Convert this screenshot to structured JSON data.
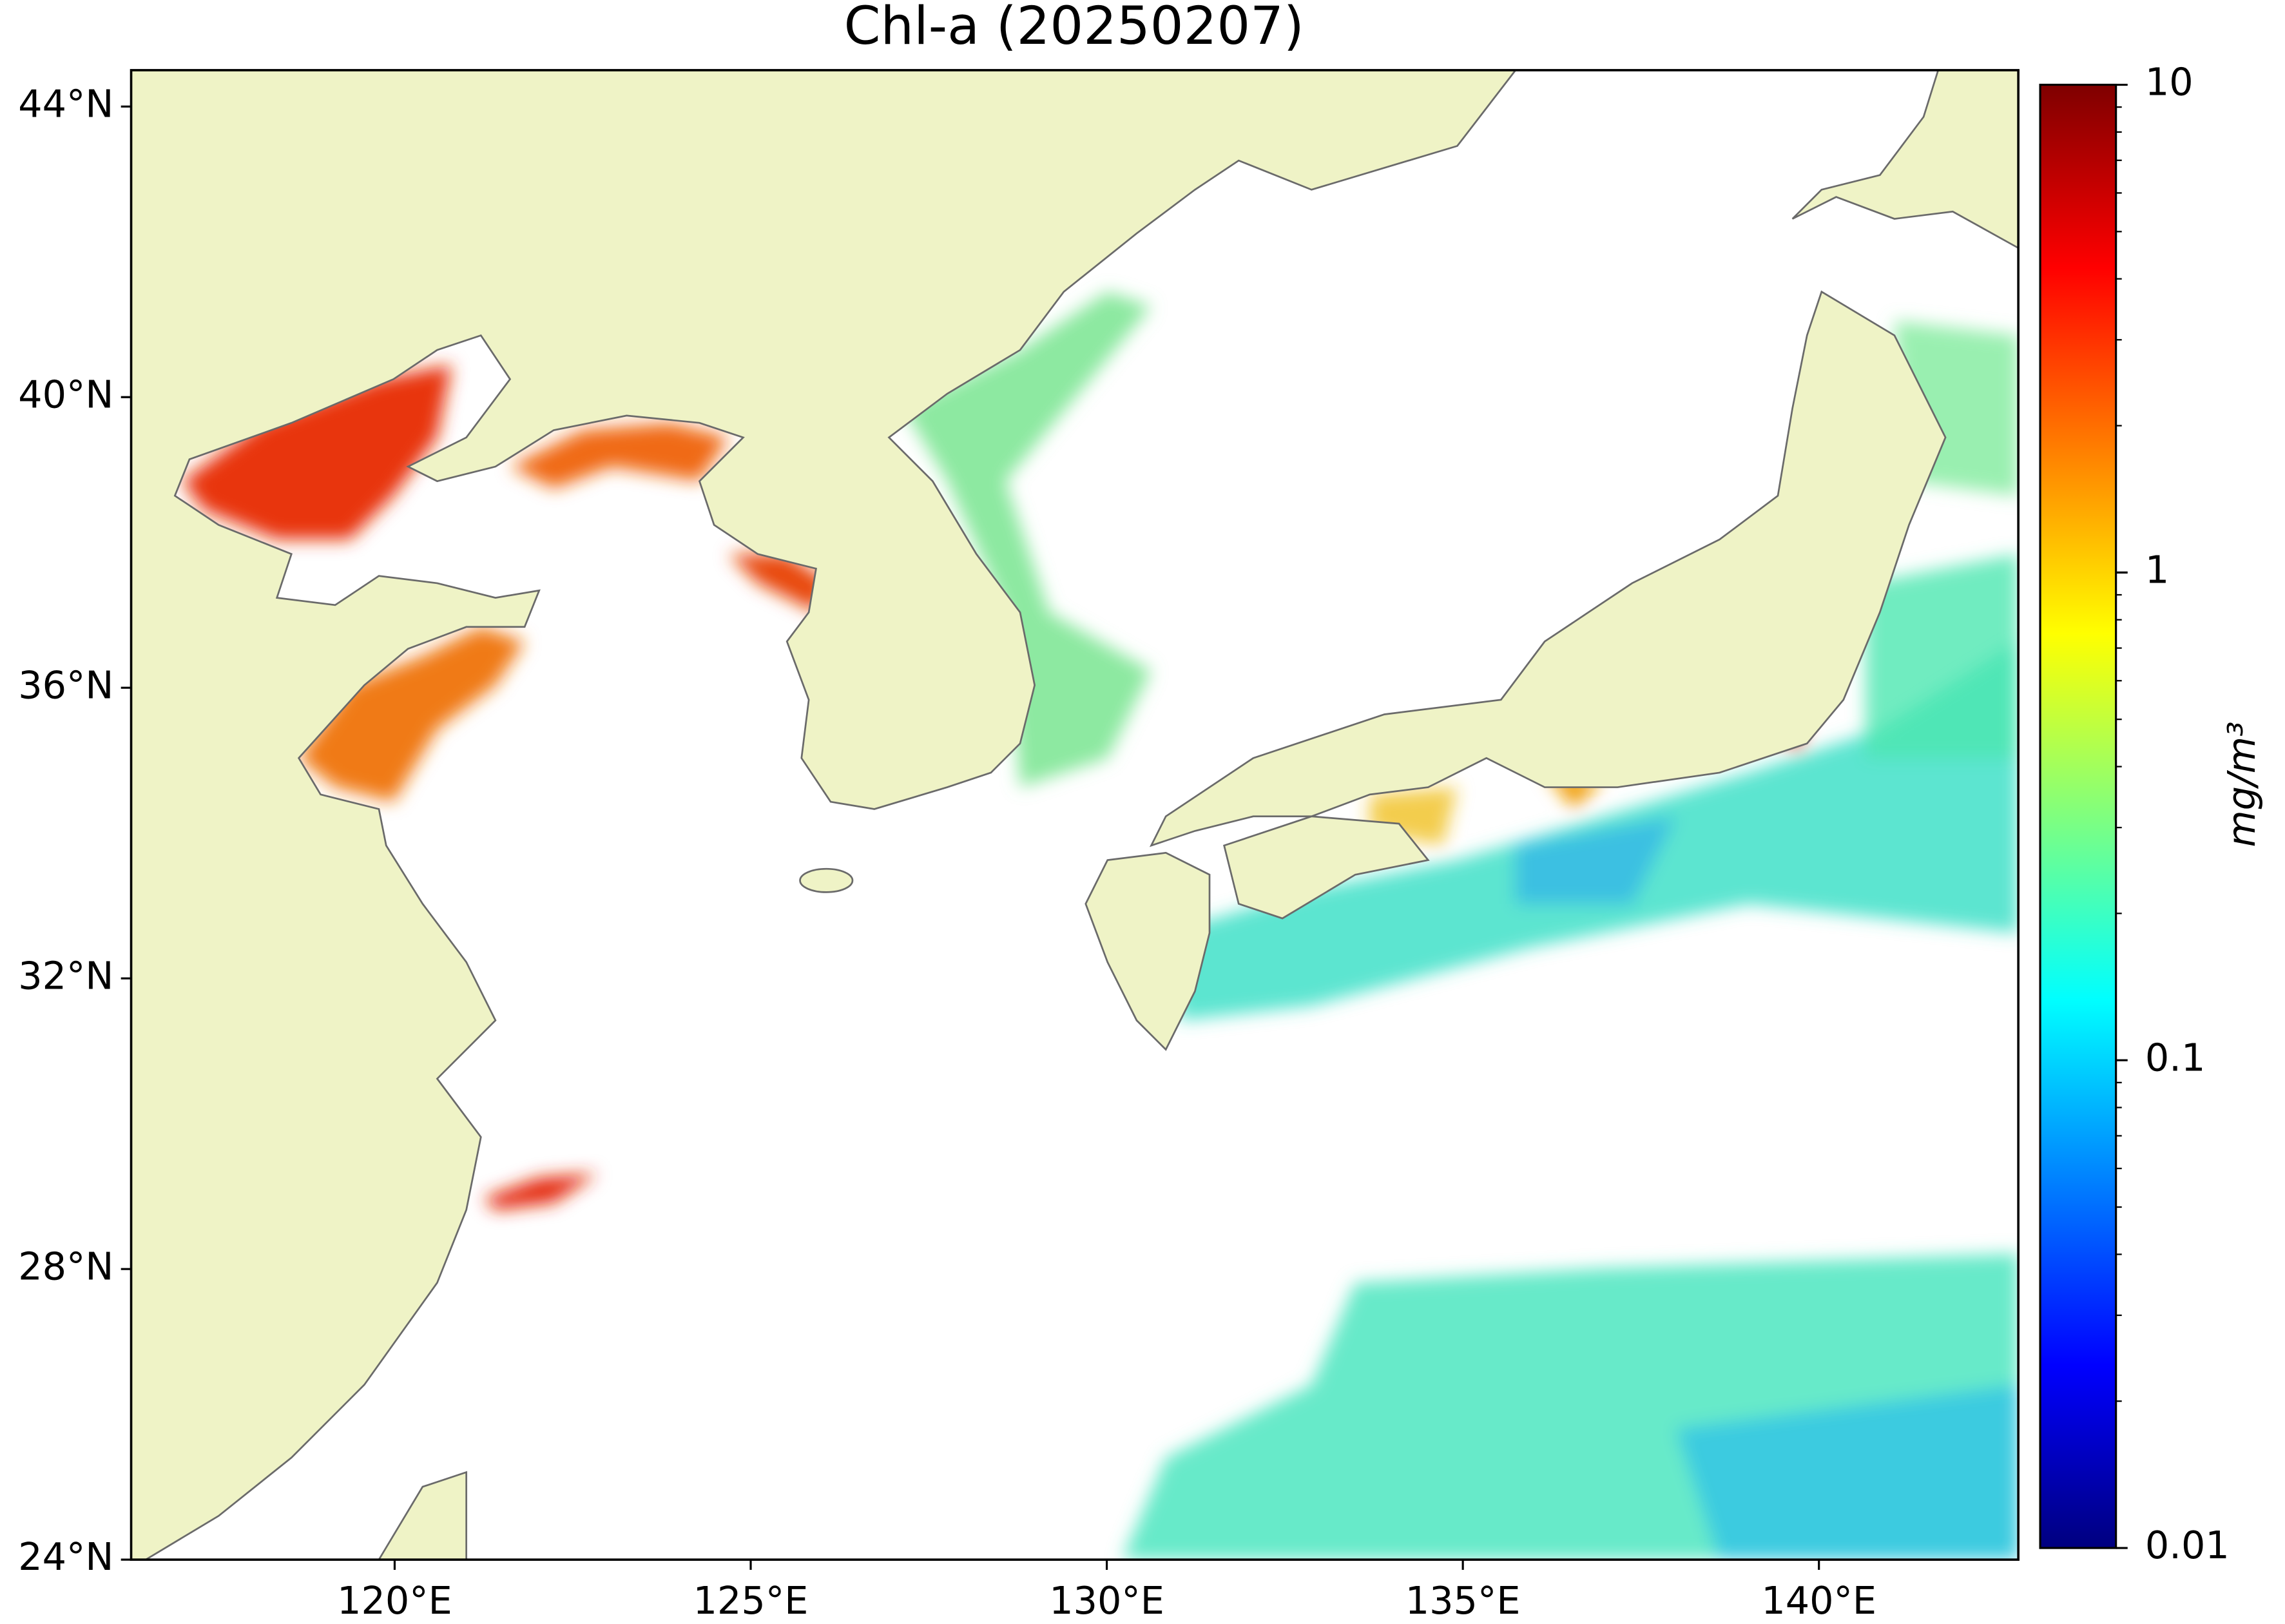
{
  "chart_data": {
    "type": "map",
    "title": "Chl-a (20250207)",
    "xlim": [
      116.3,
      142.8
    ],
    "ylim": [
      24,
      44.5
    ],
    "xticks": [
      {
        "value": 120,
        "label": "120°E"
      },
      {
        "value": 125,
        "label": "125°E"
      },
      {
        "value": 130,
        "label": "130°E"
      },
      {
        "value": 135,
        "label": "135°E"
      },
      {
        "value": 140,
        "label": "140°E"
      }
    ],
    "yticks": [
      {
        "value": 24,
        "label": "24°N"
      },
      {
        "value": 28,
        "label": "28°N"
      },
      {
        "value": 32,
        "label": "32°N"
      },
      {
        "value": 36,
        "label": "36°N"
      },
      {
        "value": 40,
        "label": "40°N"
      },
      {
        "value": 44,
        "label": "44°N"
      }
    ],
    "colorbar": {
      "label": "mg/m³",
      "scale": "log",
      "colormap": "jet",
      "lim": [
        0.01,
        10
      ],
      "ticks": [
        0.01,
        0.1,
        1,
        10
      ]
    }
  }
}
